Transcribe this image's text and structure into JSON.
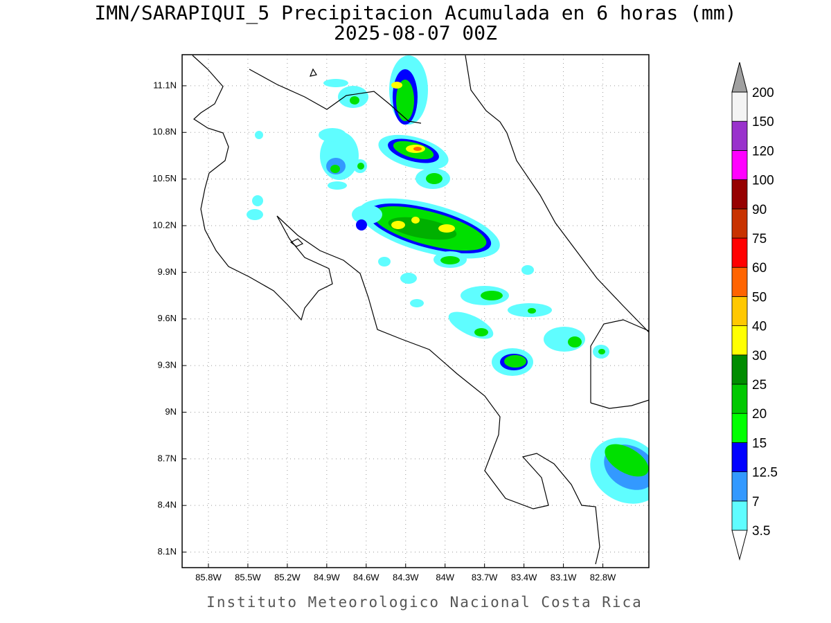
{
  "title": "IMN/SARAPIQUI_5 Precipitacion Acumulada en 6 horas (mm)",
  "subtitle": "2025-08-07 00Z",
  "map": {
    "xlim": [
      -86.0,
      -82.45
    ],
    "ylim": [
      8.0,
      11.3
    ],
    "grid": true,
    "xticks": [
      {
        "value": -85.8,
        "label": "85.8W"
      },
      {
        "value": -85.5,
        "label": "85.5W"
      },
      {
        "value": -85.2,
        "label": "85.2W"
      },
      {
        "value": -84.9,
        "label": "84.9W"
      },
      {
        "value": -84.6,
        "label": "84.6W"
      },
      {
        "value": -84.3,
        "label": "84.3W"
      },
      {
        "value": -84.0,
        "label": "84W"
      },
      {
        "value": -83.7,
        "label": "83.7W"
      },
      {
        "value": -83.4,
        "label": "83.4W"
      },
      {
        "value": -83.1,
        "label": "83.1W"
      },
      {
        "value": -82.8,
        "label": "82.8W"
      }
    ],
    "yticks": [
      {
        "value": 8.1,
        "label": "8.1N"
      },
      {
        "value": 8.4,
        "label": "8.4N"
      },
      {
        "value": 8.7,
        "label": "8.7N"
      },
      {
        "value": 9.0,
        "label": "9N"
      },
      {
        "value": 9.3,
        "label": "9.3N"
      },
      {
        "value": 9.6,
        "label": "9.6N"
      },
      {
        "value": 9.9,
        "label": "9.9N"
      },
      {
        "value": 10.2,
        "label": "10.2N"
      },
      {
        "value": 10.5,
        "label": "10.5N"
      },
      {
        "value": 10.8,
        "label": "10.8N"
      },
      {
        "value": 11.1,
        "label": "11.1N"
      }
    ]
  },
  "colorbar": {
    "levels": [
      3.5,
      7,
      12.5,
      15,
      20,
      25,
      30,
      40,
      50,
      60,
      75,
      90,
      100,
      120,
      150,
      200
    ],
    "colors": [
      "#ffffff",
      "#5ffdff",
      "#3399ff",
      "#0000ff",
      "#00ff00",
      "#00c800",
      "#008c00",
      "#ffff00",
      "#ffc800",
      "#ff6400",
      "#ff0000",
      "#c83200",
      "#960000",
      "#ff00ff",
      "#9932cc",
      "#f4f4f4",
      "#a0a0a0"
    ]
  },
  "footer": "Instituto Meteorologico Nacional Costa Rica"
}
